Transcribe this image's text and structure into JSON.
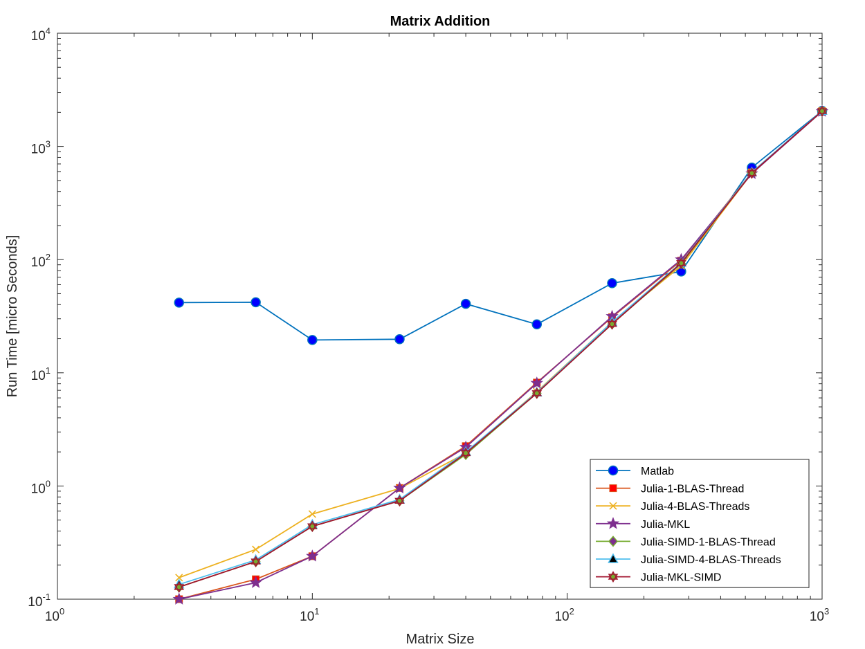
{
  "chart_data": {
    "type": "line",
    "title": "Matrix Addition",
    "xlabel": "Matrix Size",
    "ylabel": "Run Time  [micro Seconds]",
    "xscale": "log",
    "yscale": "log",
    "xlim": [
      1,
      1000
    ],
    "ylim": [
      0.1,
      10000
    ],
    "x_ticks": [
      {
        "base": "10",
        "exp": "0"
      },
      {
        "base": "10",
        "exp": "1"
      },
      {
        "base": "10",
        "exp": "2"
      },
      {
        "base": "10",
        "exp": "3"
      }
    ],
    "y_ticks": [
      {
        "base": "10",
        "exp": "-1"
      },
      {
        "base": "10",
        "exp": "0"
      },
      {
        "base": "10",
        "exp": "1"
      },
      {
        "base": "10",
        "exp": "2"
      },
      {
        "base": "10",
        "exp": "3"
      },
      {
        "base": "10",
        "exp": "4"
      }
    ],
    "grid": false,
    "legend_position": "bottom-right",
    "x": [
      3,
      6,
      10,
      22,
      40,
      76,
      150,
      280,
      530,
      1000
    ],
    "series": [
      {
        "name": "Matlab",
        "color": "#0072BD",
        "marker": "circle",
        "values": [
          41.7,
          42.0,
          19.5,
          19.8,
          40.7,
          26.8,
          61.9,
          78.5,
          650,
          2060
        ]
      },
      {
        "name": "Julia-1-BLAS-Thread",
        "color": "#D95319",
        "marker": "square",
        "values": [
          0.1,
          0.15,
          0.24,
          0.96,
          2.25,
          8.2,
          31,
          98,
          590,
          2050
        ]
      },
      {
        "name": "Julia-4-BLAS-Threads",
        "color": "#EDB120",
        "marker": "x",
        "values": [
          0.155,
          0.275,
          0.565,
          0.95,
          1.95,
          6.8,
          28,
          88,
          580,
          2050
        ]
      },
      {
        "name": "Julia-MKL",
        "color": "#7E2F8E",
        "marker": "star",
        "values": [
          0.1,
          0.14,
          0.24,
          0.96,
          2.2,
          8.1,
          31.5,
          100,
          575,
          2040
        ]
      },
      {
        "name": "Julia-SIMD-1-BLAS-Thread",
        "color": "#77AC30",
        "marker": "diamond",
        "values": [
          0.128,
          0.215,
          0.44,
          0.74,
          1.9,
          6.6,
          27,
          92,
          585,
          2050
        ]
      },
      {
        "name": "Julia-SIMD-4-BLAS-Threads",
        "color": "#4DBEEE",
        "marker": "triangle",
        "values": [
          0.135,
          0.222,
          0.455,
          0.76,
          2.0,
          6.7,
          28,
          94,
          590,
          2060
        ]
      },
      {
        "name": "Julia-MKL-SIMD",
        "color": "#A2142F",
        "marker": "hexagram",
        "values": [
          0.128,
          0.215,
          0.44,
          0.74,
          1.95,
          6.6,
          27,
          93,
          580,
          2050
        ]
      }
    ]
  }
}
